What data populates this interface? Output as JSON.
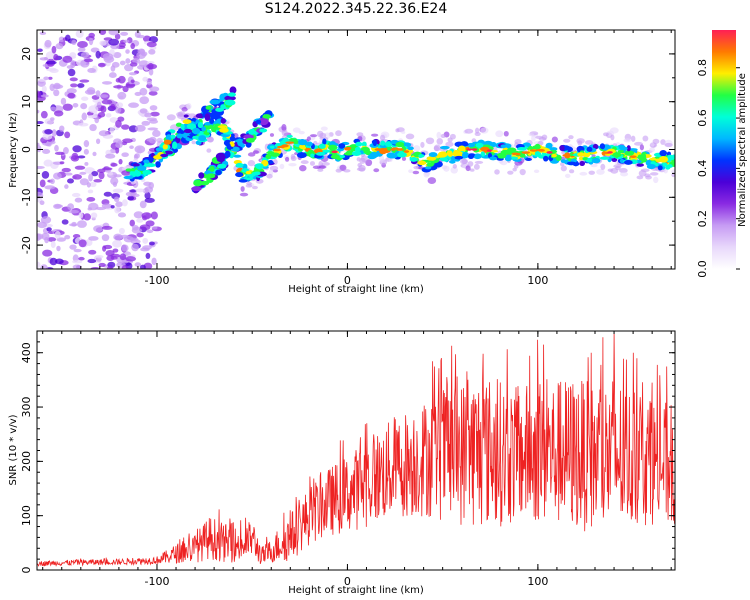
{
  "title": "S124.2022.345.22.36.E24",
  "colors": {
    "snr_line": "#ee2222",
    "axis": "#000000",
    "colormap": [
      "#ffffff",
      "#e8d8fb",
      "#c79cf4",
      "#8a2be2",
      "#4b00d8",
      "#0033ff",
      "#00b8ff",
      "#00ffd8",
      "#22ff44",
      "#ffee00",
      "#ff7a00",
      "#ff1f55"
    ]
  },
  "chart_data": [
    {
      "type": "heatmap",
      "name": "spectrogram",
      "xlabel": "Height of straight line (km)",
      "ylabel": "Frequency (Hz)",
      "xlim": [
        -163,
        172
      ],
      "ylim": [
        -25,
        25
      ],
      "x_ticks": [
        -100,
        0,
        100
      ],
      "x_tick_labels": [
        "-100",
        "0",
        "100"
      ],
      "y_ticks": [
        -20,
        -10,
        0,
        10,
        20
      ],
      "y_tick_labels": [
        "-20",
        "-10",
        "0",
        "10",
        "20"
      ],
      "colorbar": {
        "label": "Normalized spectral amplitude",
        "range": [
          0,
          0.95
        ],
        "ticks": [
          0,
          0.2,
          0.4,
          0.6,
          0.8
        ],
        "tick_labels": [
          "0.0",
          "0.2",
          "0.4",
          "0.6",
          "0.8"
        ]
      },
      "ridge": {
        "x": [
          -115,
          -108,
          -100,
          -95,
          -90,
          -85,
          -78,
          -72,
          -66,
          -60,
          -56,
          -50,
          -45,
          -40,
          -35,
          -30,
          -25,
          -18,
          -10,
          -5,
          0,
          5,
          10,
          20,
          28,
          35,
          42,
          50,
          55,
          60,
          70,
          80,
          90,
          100,
          110,
          120,
          130,
          140,
          150,
          160,
          168
        ],
        "y": [
          -4.5,
          -4.5,
          -2,
          1,
          5,
          6,
          2.5,
          4.5,
          5,
          1,
          -5,
          -5,
          -4,
          -1,
          0.5,
          1.5,
          0.5,
          -0.5,
          0.5,
          -1,
          0,
          0.5,
          0,
          0,
          0,
          -1,
          -3,
          -1,
          -1,
          0,
          0,
          -0.5,
          -1,
          0,
          -1,
          -1.5,
          -1,
          -0.5,
          -1.5,
          -2,
          -2.5
        ]
      },
      "branches": [
        {
          "x": [
            -98,
            -90,
            -82,
            -75,
            -68,
            -60
          ],
          "y": [
            -1,
            1.5,
            4,
            7,
            9,
            11
          ]
        },
        {
          "x": [
            -80,
            -72,
            -64,
            -56,
            -48,
            -40
          ],
          "y": [
            -8,
            -5,
            -2,
            1,
            4,
            7
          ]
        }
      ]
    },
    {
      "type": "line",
      "name": "snr",
      "xlabel": "Height of straight line (km)",
      "ylabel": "SNR (10 * v/v)",
      "xlim": [
        -163,
        172
      ],
      "ylim": [
        0,
        440
      ],
      "x_ticks": [
        -100,
        0,
        100
      ],
      "x_tick_labels": [
        "-100",
        "0",
        "100"
      ],
      "y_ticks": [
        0,
        100,
        200,
        300,
        400
      ],
      "y_tick_labels": [
        "0",
        "100",
        "200",
        "300",
        "400"
      ],
      "envelope": {
        "x": [
          -163,
          -140,
          -120,
          -100,
          -90,
          -80,
          -72,
          -65,
          -55,
          -50,
          -45,
          -40,
          -35,
          -30,
          -20,
          -10,
          0,
          10,
          20,
          30,
          40,
          50,
          60,
          70,
          80,
          90,
          100,
          110,
          120,
          130,
          140,
          150,
          160,
          172
        ],
        "y": [
          12,
          14,
          15,
          18,
          30,
          40,
          60,
          50,
          45,
          60,
          25,
          35,
          50,
          60,
          100,
          125,
          140,
          160,
          180,
          195,
          205,
          215,
          215,
          220,
          215,
          210,
          220,
          215,
          215,
          205,
          210,
          205,
          200,
          190
        ],
        "spread": [
          5,
          6,
          6,
          8,
          20,
          30,
          45,
          40,
          35,
          40,
          20,
          25,
          40,
          50,
          60,
          70,
          80,
          90,
          100,
          110,
          120,
          140,
          150,
          160,
          150,
          140,
          150,
          150,
          160,
          150,
          170,
          140,
          130,
          130
        ]
      },
      "peaks": [
        {
          "x": 103,
          "y": 415
        },
        {
          "x": 140,
          "y": 435
        },
        {
          "x": 160,
          "y": 345
        },
        {
          "x": 128,
          "y": 400
        },
        {
          "x": 152,
          "y": 390
        }
      ]
    }
  ]
}
